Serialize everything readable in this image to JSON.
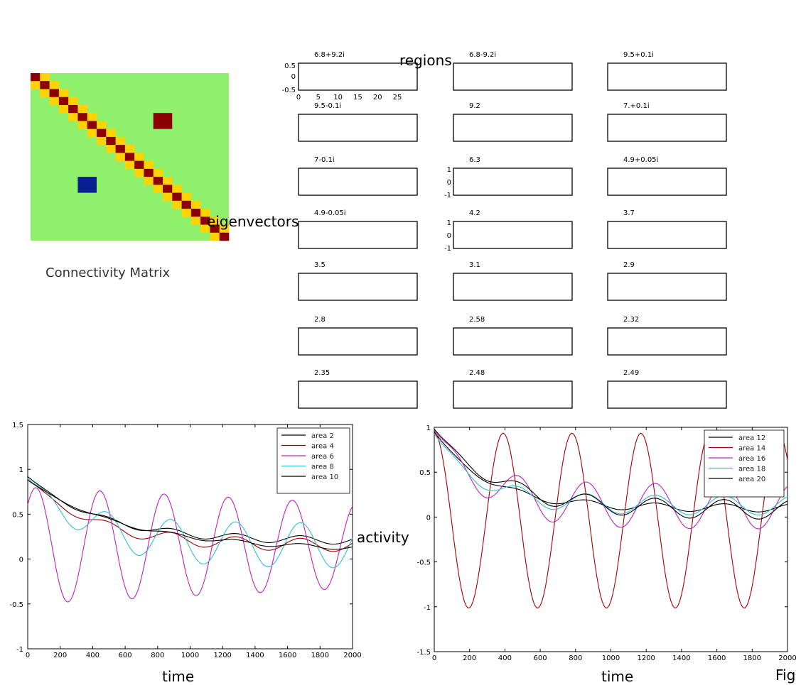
{
  "matrix": {
    "caption": "Connectivity Matrix",
    "size": 21,
    "colors": {
      "background": "#8ff06c",
      "diagonal": "#8b0000",
      "off_diagonal": "#ffd200",
      "block_red": "#8b0000",
      "block_blue": "#0a1f8f"
    }
  },
  "labels": {
    "regions": "regions",
    "eigenvectors": "eigenvectors",
    "activity": "activity",
    "time_left": "time",
    "time_right": "time",
    "fig": "Fig"
  },
  "eigen_grid": {
    "titles": [
      [
        "6.8+9.2i",
        "6.8-9.2i",
        "9.5+0.1i"
      ],
      [
        "9.5-0.1i",
        "9.2",
        "7.+0.1i"
      ],
      [
        "7-0.1i",
        "6.3",
        "4.9+0.05i"
      ],
      [
        "4.9-0.05i",
        "4.2",
        "3.7"
      ],
      [
        "3.5",
        "3.1",
        "2.9"
      ],
      [
        "2.8",
        "2.58",
        "2.32"
      ],
      [
        "2.35",
        "2.48",
        "2.49"
      ]
    ],
    "first_axis": {
      "yticks": [
        "0.5",
        "0",
        "-0.5"
      ],
      "xticks": [
        "0",
        "5",
        "10",
        "15",
        "20",
        "25"
      ]
    },
    "mid_axis_ticks": [
      "1",
      "0",
      "-1"
    ]
  },
  "chart_data": [
    {
      "type": "line",
      "xlabel": "time",
      "ylabel": "activity",
      "xlim": [
        0,
        2000
      ],
      "ylim": [
        -1,
        1.5
      ],
      "xticks": [
        "0",
        "200",
        "400",
        "600",
        "800",
        "1000",
        "1200",
        "1400",
        "1600",
        "1800",
        "2000"
      ],
      "yticks": [
        "1.5",
        "1",
        "0.5",
        "0",
        "-0.5",
        "-1"
      ],
      "legend_position": "top-right",
      "series": [
        {
          "name": "area 2",
          "color": "#000000",
          "kind": "decay",
          "a": 0.72,
          "tau": 450,
          "c": 0.2,
          "amp": 0.05,
          "period": 400
        },
        {
          "name": "area 4",
          "color": "#a40000",
          "kind": "decay",
          "a": 0.75,
          "tau": 400,
          "c": 0.15,
          "amp": 0.08,
          "period": 400
        },
        {
          "name": "area 6",
          "color": "#c020c0",
          "kind": "osc",
          "amp0": 1.3,
          "ampEnd": 0.95,
          "period": 395,
          "offset": 0.15,
          "peak0": 50
        },
        {
          "name": "area 8",
          "color": "#30c0d0",
          "kind": "decay",
          "a": 0.75,
          "tau": 350,
          "c": 0.15,
          "amp": 0.28,
          "period": 400
        },
        {
          "name": "area 10",
          "color": "#000000",
          "kind": "decay",
          "a": 0.78,
          "tau": 600,
          "c": 0.1,
          "amp": 0.03,
          "period": 400
        }
      ]
    },
    {
      "type": "line",
      "xlabel": "time",
      "xlim": [
        0,
        2000
      ],
      "ylim": [
        -1.5,
        1
      ],
      "xticks": [
        "0",
        "200",
        "400",
        "600",
        "800",
        "1000",
        "1200",
        "1400",
        "1600",
        "1800",
        "2000"
      ],
      "yticks": [
        "1",
        "0.5",
        "0",
        "-0.5",
        "-1",
        "-1.5"
      ],
      "legend_position": "top-right",
      "series": [
        {
          "name": "area 12",
          "color": "#000000",
          "kind": "decay",
          "a": 0.85,
          "tau": 300,
          "c": 0.1,
          "amp": 0.05,
          "period": 390
        },
        {
          "name": "area 14",
          "color": "#a40000",
          "kind": "osc",
          "amp0": 1.95,
          "ampEnd": 1.95,
          "period": 390,
          "offset": -0.04,
          "peak0": 0,
          "flip": true
        },
        {
          "name": "area 16",
          "color": "#c020c0",
          "kind": "decay",
          "a": 0.85,
          "tau": 250,
          "c": 0.12,
          "amp": 0.28,
          "period": 390
        },
        {
          "name": "area 18",
          "color": "#30c0d0",
          "kind": "decay",
          "a": 0.8,
          "tau": 250,
          "c": 0.13,
          "amp": 0.12,
          "period": 390
        },
        {
          "name": "area 20",
          "color": "#000000",
          "kind": "decay",
          "a": 0.9,
          "tau": 350,
          "c": 0.08,
          "amp": 0.12,
          "period": 390
        }
      ]
    }
  ]
}
